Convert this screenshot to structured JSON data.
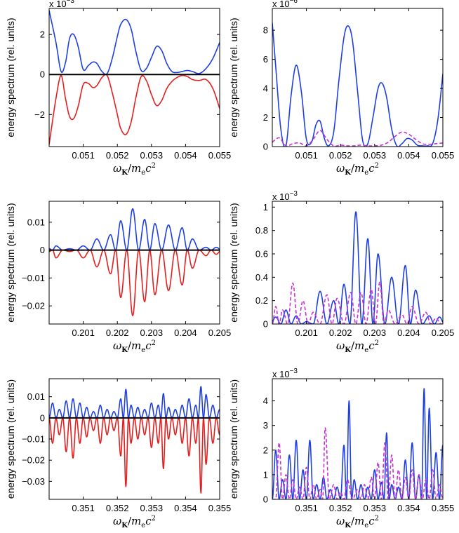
{
  "figure": {
    "xlabel": "ωK/mec²",
    "ylabel": "energy spectrum (rel. units)"
  },
  "colors": {
    "blue": "#1f3fe6",
    "red": "#e61e1e",
    "magenta": "#c832d2",
    "zero_line": "#000000"
  },
  "chart_data": [
    {
      "id": "top-left",
      "type": "line",
      "xlim": [
        0.05,
        0.055
      ],
      "ylim": [
        -3.6,
        3.3
      ],
      "xticks": [
        0.051,
        0.052,
        0.053,
        0.054,
        0.055
      ],
      "xtick_labels": [
        "0.051",
        "0.052",
        "0.053",
        "0.054",
        "0.055"
      ],
      "yticks": [
        -2,
        0,
        2
      ],
      "ytick_labels": [
        "−2",
        "0",
        "2"
      ],
      "multiplier": "x 10",
      "multiplier_exp": "−3",
      "xlabel": "ωK/mec²",
      "ylabel": "energy spectrum (rel. units)",
      "series": [
        {
          "name": "blue",
          "style": "solid",
          "color": "blue",
          "x": [
            0.05,
            0.0502,
            0.05035,
            0.05048,
            0.0506,
            0.05072,
            0.05085,
            0.051,
            0.05115,
            0.05128,
            0.0514,
            0.05155,
            0.0517,
            0.05185,
            0.052,
            0.0521,
            0.05225,
            0.0524,
            0.05255,
            0.0527,
            0.05285,
            0.053,
            0.05315,
            0.0533,
            0.05345,
            0.0536,
            0.05375,
            0.0539,
            0.05405,
            0.0542,
            0.0544,
            0.0546,
            0.0548,
            0.055
          ],
          "y": [
            3.2,
            1.6,
            0.15,
            0.6,
            1.8,
            2.0,
            1.4,
            0.25,
            0.45,
            0.62,
            0.55,
            0.15,
            0.05,
            0.8,
            1.9,
            2.5,
            2.75,
            2.3,
            1.1,
            0.2,
            0.3,
            0.85,
            1.4,
            1.2,
            0.55,
            0.15,
            0.1,
            0.15,
            0.2,
            0.15,
            0.05,
            0.3,
            0.8,
            1.6
          ]
        },
        {
          "name": "red",
          "style": "solid",
          "color": "red",
          "x": [
            0.05,
            0.0502,
            0.05035,
            0.05048,
            0.0506,
            0.05072,
            0.05085,
            0.051,
            0.05115,
            0.05128,
            0.0514,
            0.05155,
            0.0517,
            0.05185,
            0.052,
            0.0521,
            0.05225,
            0.0524,
            0.05255,
            0.0527,
            0.05285,
            0.053,
            0.05315,
            0.0533,
            0.05345,
            0.0536,
            0.05375,
            0.0539,
            0.05405,
            0.0542,
            0.0544,
            0.0546,
            0.0548,
            0.055
          ],
          "y": [
            -3.5,
            -1.2,
            -0.05,
            -1.2,
            -2.1,
            -2.2,
            -1.6,
            -0.5,
            -0.45,
            -0.65,
            -0.55,
            -0.15,
            -0.05,
            -0.9,
            -2.0,
            -2.7,
            -3.0,
            -2.4,
            -1.1,
            -0.1,
            -0.3,
            -1.0,
            -1.55,
            -1.3,
            -0.7,
            -0.35,
            -0.15,
            -0.05,
            -0.1,
            -0.25,
            -0.3,
            -0.25,
            -0.7,
            -1.7
          ]
        }
      ]
    },
    {
      "id": "top-right",
      "type": "line",
      "xlim": [
        0.05,
        0.055
      ],
      "ylim": [
        0,
        9.5
      ],
      "xticks": [
        0.051,
        0.052,
        0.053,
        0.054,
        0.055
      ],
      "xtick_labels": [
        "0.051",
        "0.052",
        "0.053",
        "0.054",
        "0.055"
      ],
      "yticks": [
        0,
        2,
        4,
        6,
        8
      ],
      "ytick_labels": [
        "0",
        "2",
        "4",
        "6",
        "8"
      ],
      "multiplier": "x 10",
      "multiplier_exp": "−6",
      "xlabel": "ωK/mec²",
      "ylabel": "energy spectrum (rel. units)",
      "series": [
        {
          "name": "blue",
          "style": "solid",
          "color": "blue",
          "x": [
            0.05,
            0.0501,
            0.05025,
            0.0504,
            0.05055,
            0.0507,
            0.05085,
            0.051,
            0.05115,
            0.05128,
            0.0514,
            0.05152,
            0.05165,
            0.0518,
            0.05195,
            0.0521,
            0.05222,
            0.05235,
            0.0525,
            0.05265,
            0.0528,
            0.05295,
            0.0531,
            0.05322,
            0.05335,
            0.0535,
            0.05365,
            0.0538,
            0.05395,
            0.0541,
            0.05425,
            0.0544,
            0.05455,
            0.0547,
            0.05485,
            0.055
          ],
          "y": [
            8.5,
            5.5,
            1.2,
            0.05,
            3.5,
            5.6,
            3.8,
            0.5,
            0.3,
            1.5,
            1.75,
            0.6,
            0.05,
            1.0,
            4.5,
            7.5,
            8.3,
            7.3,
            3.8,
            0.4,
            0.2,
            2.0,
            4.0,
            4.35,
            3.4,
            1.2,
            0.05,
            0.2,
            0.55,
            0.45,
            0.1,
            0.05,
            0.05,
            0.2,
            1.8,
            5.0
          ]
        },
        {
          "name": "magenta",
          "style": "dashed",
          "color": "magenta",
          "x": [
            0.05,
            0.0502,
            0.0504,
            0.0506,
            0.0508,
            0.051,
            0.0512,
            0.0514,
            0.0516,
            0.0518,
            0.052,
            0.0522,
            0.0524,
            0.0526,
            0.0528,
            0.053,
            0.0532,
            0.0534,
            0.0536,
            0.0538,
            0.054,
            0.0542,
            0.0544,
            0.0546,
            0.0548,
            0.055
          ],
          "y": [
            0.3,
            0.6,
            0.05,
            0.2,
            0.25,
            0.05,
            0.5,
            1.1,
            0.5,
            0.05,
            0.1,
            0.05,
            0.05,
            0.1,
            0.05,
            0.05,
            0.1,
            0.3,
            0.7,
            1.0,
            0.85,
            0.5,
            0.2,
            0.15,
            0.2,
            0.25
          ]
        }
      ]
    },
    {
      "id": "middle-left",
      "type": "line",
      "xlim": [
        0.2,
        0.205
      ],
      "ylim": [
        -0.0265,
        0.0175
      ],
      "xticks": [
        0.201,
        0.202,
        0.203,
        0.204,
        0.205
      ],
      "xtick_labels": [
        "0.201",
        "0.202",
        "0.203",
        "0.204",
        "0.205"
      ],
      "yticks": [
        -0.02,
        -0.01,
        0,
        0.01
      ],
      "ytick_labels": [
        "−0.02",
        "−0.01",
        "0",
        "0.01"
      ],
      "multiplier": "",
      "multiplier_exp": "",
      "xlabel": "ωK/mec²",
      "ylabel": "energy spectrum (rel. units)",
      "series": [
        {
          "name": "blue",
          "style": "solid",
          "color": "blue",
          "peaks_x": [
            0.2,
            0.2002,
            0.2006,
            0.201,
            0.2014,
            0.2018,
            0.2021,
            0.20245,
            0.2028,
            0.2031,
            0.2035,
            0.2039,
            0.2042,
            0.2046,
            0.2049
          ],
          "peaks_y": [
            0.0005,
            0.0015,
            0.0005,
            0.0015,
            0.004,
            0.0055,
            0.0105,
            0.0148,
            0.011,
            0.0095,
            0.009,
            0.008,
            0.004,
            0.001,
            0.001
          ]
        },
        {
          "name": "red",
          "style": "solid",
          "color": "red",
          "peaks_x": [
            0.2,
            0.2002,
            0.2006,
            0.201,
            0.2014,
            0.2018,
            0.2021,
            0.20245,
            0.2028,
            0.2031,
            0.2035,
            0.2039,
            0.2042,
            0.2046,
            0.2049
          ],
          "peaks_y": [
            -0.0005,
            -0.0028,
            -0.0005,
            -0.0028,
            -0.006,
            -0.0085,
            -0.017,
            -0.0235,
            -0.0185,
            -0.016,
            -0.0145,
            -0.0125,
            -0.0065,
            -0.002,
            -0.0015
          ]
        }
      ]
    },
    {
      "id": "middle-right",
      "type": "line",
      "xlim": [
        0.2,
        0.205
      ],
      "ylim": [
        0,
        1.05
      ],
      "xticks": [
        0.201,
        0.202,
        0.203,
        0.204,
        0.205
      ],
      "xtick_labels": [
        "0.201",
        "0.202",
        "0.203",
        "0.204",
        "0.205"
      ],
      "yticks": [
        0,
        0.2,
        0.4,
        0.6,
        0.8,
        1
      ],
      "ytick_labels": [
        "0",
        "0.2",
        "0.4",
        "0.6",
        "0.8",
        "1"
      ],
      "multiplier": "x 10",
      "multiplier_exp": "−3",
      "xlabel": "ωK/mec²",
      "ylabel": "energy spectrum (rel. units)",
      "series": [
        {
          "name": "blue",
          "style": "solid",
          "color": "blue",
          "peaks_x": [
            0.2001,
            0.2004,
            0.2007,
            0.201,
            0.2014,
            0.2018,
            0.2021,
            0.20245,
            0.2028,
            0.2031,
            0.2035,
            0.2039,
            0.2042,
            0.2046,
            0.2049
          ],
          "peaks_y": [
            0.06,
            0.12,
            0.07,
            0.02,
            0.28,
            0.2,
            0.34,
            0.96,
            0.73,
            0.6,
            0.4,
            0.5,
            0.29,
            0.07,
            0.06
          ]
        },
        {
          "name": "magenta",
          "style": "dashed",
          "color": "magenta",
          "peaks_x": [
            0.2001,
            0.2003,
            0.2006,
            0.2009,
            0.2012,
            0.2016,
            0.2019,
            0.2023,
            0.2026,
            0.2029,
            0.20315,
            0.2034,
            0.2038,
            0.2041,
            0.2045,
            0.2048
          ],
          "peaks_y": [
            0.15,
            0.12,
            0.35,
            0.2,
            0.1,
            0.25,
            0.22,
            0.27,
            0.27,
            0.3,
            0.36,
            0.12,
            0.08,
            0.15,
            0.1,
            0.05
          ]
        }
      ]
    },
    {
      "id": "bottom-left",
      "type": "line",
      "xlim": [
        0.35,
        0.355
      ],
      "ylim": [
        -0.0385,
        0.0185
      ],
      "xticks": [
        0.351,
        0.352,
        0.353,
        0.354,
        0.355
      ],
      "xtick_labels": [
        "0.351",
        "0.352",
        "0.353",
        "0.354",
        "0.355"
      ],
      "yticks": [
        -0.03,
        -0.02,
        -0.01,
        0,
        0.01
      ],
      "ytick_labels": [
        "−0.03",
        "−0.02",
        "−0.01",
        "0",
        "0.01"
      ],
      "multiplier": "",
      "multiplier_exp": "",
      "xlabel": "ωK/mec²",
      "ylabel": "energy spectrum (rel. units)",
      "series": [
        {
          "name": "blue",
          "style": "solid",
          "color": "blue",
          "peaks_x": [
            0.3501,
            0.3503,
            0.3505,
            0.3507,
            0.3509,
            0.3511,
            0.3513,
            0.3515,
            0.3517,
            0.3519,
            0.3521,
            0.35225,
            0.3524,
            0.3526,
            0.3528,
            0.353,
            0.3532,
            0.35335,
            0.3535,
            0.3537,
            0.3539,
            0.3541,
            0.3543,
            0.35445,
            0.3546,
            0.3548,
            0.355
          ],
          "peaks_y": [
            0.007,
            0.004,
            0.008,
            0.009,
            0.007,
            0.005,
            0.003,
            0.006,
            0.004,
            0.003,
            0.009,
            0.0135,
            0.006,
            0.005,
            0.004,
            0.007,
            0.006,
            0.0115,
            0.005,
            0.004,
            0.006,
            0.009,
            0.006,
            0.0148,
            0.011,
            0.006,
            0.004
          ]
        },
        {
          "name": "red",
          "style": "solid",
          "color": "red",
          "peaks_x": [
            0.3501,
            0.3503,
            0.3505,
            0.3507,
            0.3509,
            0.3511,
            0.3513,
            0.3515,
            0.3517,
            0.3519,
            0.3521,
            0.35225,
            0.3524,
            0.3526,
            0.3528,
            0.353,
            0.3532,
            0.35335,
            0.3535,
            0.3537,
            0.3539,
            0.3541,
            0.3543,
            0.35445,
            0.3546,
            0.3548,
            0.355
          ],
          "peaks_y": [
            -0.012,
            -0.008,
            -0.016,
            -0.019,
            -0.012,
            -0.009,
            -0.006,
            -0.012,
            -0.008,
            -0.006,
            -0.018,
            -0.0325,
            -0.012,
            -0.01,
            -0.008,
            -0.014,
            -0.012,
            -0.024,
            -0.01,
            -0.008,
            -0.012,
            -0.018,
            -0.012,
            -0.0355,
            -0.022,
            -0.012,
            -0.008
          ]
        }
      ]
    },
    {
      "id": "bottom-right",
      "type": "line",
      "xlim": [
        0.35,
        0.355
      ],
      "ylim": [
        0,
        4.9
      ],
      "xticks": [
        0.351,
        0.352,
        0.353,
        0.354,
        0.355
      ],
      "xtick_labels": [
        "0.351",
        "0.352",
        "0.353",
        "0.354",
        "0.355"
      ],
      "yticks": [
        0,
        1,
        2,
        3,
        4
      ],
      "ytick_labels": [
        "0",
        "1",
        "2",
        "3",
        "4"
      ],
      "multiplier": "x 10",
      "multiplier_exp": "−3",
      "xlabel": "ωK/mec²",
      "ylabel": "energy spectrum (rel. units)",
      "series": [
        {
          "name": "blue",
          "style": "solid",
          "color": "blue",
          "peaks_x": [
            0.3501,
            0.3503,
            0.3505,
            0.3507,
            0.3509,
            0.3511,
            0.3513,
            0.3515,
            0.3517,
            0.3519,
            0.3521,
            0.35225,
            0.3524,
            0.3526,
            0.3528,
            0.353,
            0.3532,
            0.35335,
            0.3535,
            0.3537,
            0.3539,
            0.3541,
            0.3543,
            0.35445,
            0.3546,
            0.3548,
            0.355
          ],
          "peaks_y": [
            2.0,
            0.8,
            1.8,
            2.4,
            1.2,
            2.4,
            0.6,
            0.9,
            0.4,
            0.5,
            2.2,
            4.0,
            0.8,
            0.6,
            0.5,
            1.2,
            0.7,
            2.7,
            0.6,
            0.5,
            1.6,
            2.3,
            1.0,
            4.5,
            3.7,
            1.9,
            2.2
          ]
        },
        {
          "name": "magenta",
          "style": "dashed",
          "color": "magenta",
          "peaks_x": [
            0.3502,
            0.3504,
            0.3506,
            0.3508,
            0.351,
            0.3512,
            0.3514,
            0.35155,
            0.3518,
            0.352,
            0.3522,
            0.3525,
            0.3527,
            0.3529,
            0.3531,
            0.3533,
            0.3535,
            0.3537,
            0.3539,
            0.3541,
            0.3543,
            0.3545,
            0.3547,
            0.3549
          ],
          "peaks_y": [
            2.3,
            1.0,
            0.8,
            0.5,
            1.3,
            0.6,
            0.4,
            2.9,
            0.6,
            0.3,
            0.8,
            0.4,
            0.6,
            0.9,
            1.5,
            2.3,
            1.8,
            1.2,
            0.9,
            1.2,
            1.0,
            0.8,
            1.2,
            0.6
          ]
        }
      ]
    }
  ]
}
